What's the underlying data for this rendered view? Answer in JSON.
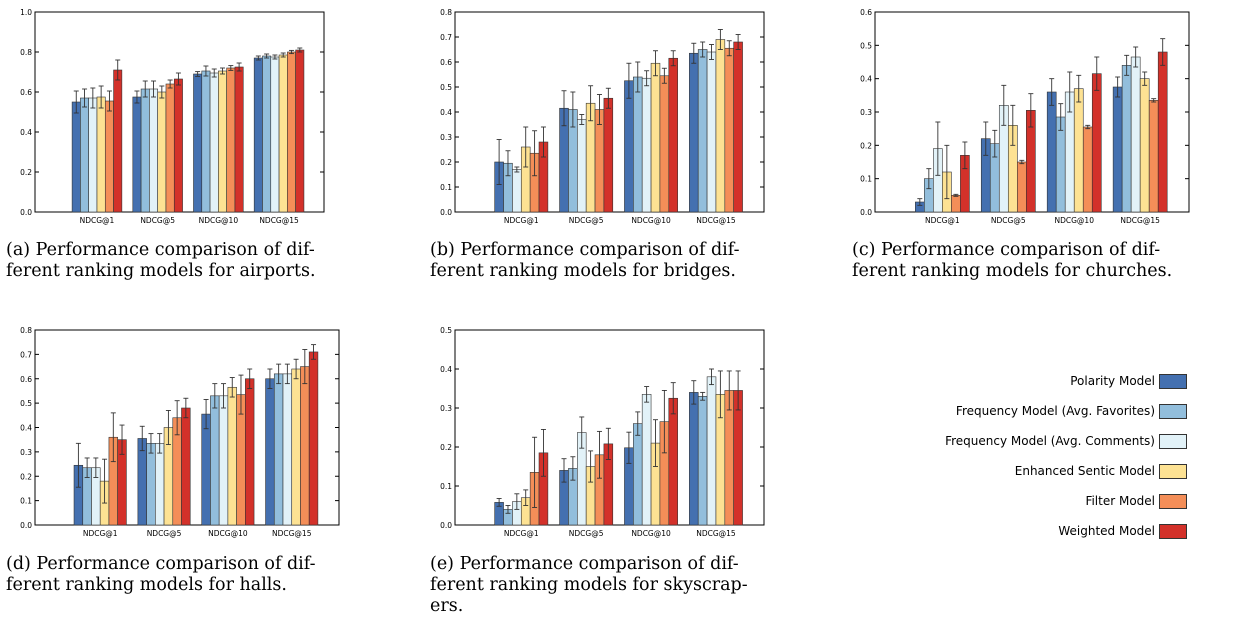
{
  "colors": [
    "#4470b0",
    "#92bedc",
    "#e2f2f8",
    "#fde293",
    "#f48e58",
    "#d3312a"
  ],
  "legend": [
    {
      "label": "Polarity Model",
      "color": "#4470b0"
    },
    {
      "label": "Frequency Model (Avg. Favorites)",
      "color": "#92bedc"
    },
    {
      "label": "Frequency Model (Avg. Comments)",
      "color": "#e2f2f8"
    },
    {
      "label": "Enhanced Sentic Model",
      "color": "#fde293"
    },
    {
      "label": "Filter Model",
      "color": "#f48e58"
    },
    {
      "label": "Weighted Model",
      "color": "#d3312a"
    }
  ],
  "chart_data": [
    {
      "type": "bar",
      "caption": "(a) Performance comparison of different ranking models for airports.",
      "caption_lines": [
        "(a) Performance comparison of dif-",
        "ferent ranking models for airports."
      ],
      "categories": [
        "NDCG@1",
        "NDCG@5",
        "NDCG@10",
        "NDCG@15"
      ],
      "ylim": [
        0,
        1.0
      ],
      "yticks": [
        "0.0",
        "0.2",
        "0.4",
        "0.6",
        "0.8",
        "1.0"
      ],
      "series": [
        {
          "name": "Polarity Model",
          "values": [
            0.55,
            0.575,
            0.69,
            0.77
          ],
          "errors": [
            0.055,
            0.03,
            0.012,
            0.01
          ]
        },
        {
          "name": "Frequency Model (Avg. Favorites)",
          "values": [
            0.57,
            0.615,
            0.705,
            0.78
          ],
          "errors": [
            0.045,
            0.04,
            0.025,
            0.01
          ]
        },
        {
          "name": "Frequency Model (Avg. Comments)",
          "values": [
            0.57,
            0.615,
            0.695,
            0.775
          ],
          "errors": [
            0.05,
            0.04,
            0.02,
            0.01
          ]
        },
        {
          "name": "Enhanced Sentic Model",
          "values": [
            0.575,
            0.6,
            0.705,
            0.785
          ],
          "errors": [
            0.055,
            0.03,
            0.015,
            0.01
          ]
        },
        {
          "name": "Filter Model",
          "values": [
            0.555,
            0.64,
            0.72,
            0.8
          ],
          "errors": [
            0.05,
            0.02,
            0.012,
            0.008
          ]
        },
        {
          "name": "Weighted Model",
          "values": [
            0.71,
            0.665,
            0.725,
            0.81
          ],
          "errors": [
            0.05,
            0.03,
            0.02,
            0.01
          ]
        }
      ]
    },
    {
      "type": "bar",
      "caption": "(b) Performance comparison of different ranking models for bridges.",
      "caption_lines": [
        "(b) Performance comparison of dif-",
        "ferent ranking models for bridges."
      ],
      "categories": [
        "NDCG@1",
        "NDCG@5",
        "NDCG@10",
        "NDCG@15"
      ],
      "ylim": [
        0,
        0.8
      ],
      "yticks": [
        "0.0",
        "0.1",
        "0.2",
        "0.3",
        "0.4",
        "0.5",
        "0.6",
        "0.7",
        "0.8"
      ],
      "series": [
        {
          "name": "Polarity Model",
          "values": [
            0.2,
            0.415,
            0.525,
            0.635
          ],
          "errors": [
            0.09,
            0.07,
            0.07,
            0.04
          ]
        },
        {
          "name": "Frequency Model (Avg. Favorites)",
          "values": [
            0.195,
            0.41,
            0.54,
            0.65
          ],
          "errors": [
            0.05,
            0.07,
            0.06,
            0.03
          ]
        },
        {
          "name": "Frequency Model (Avg. Comments)",
          "values": [
            0.17,
            0.37,
            0.535,
            0.64
          ],
          "errors": [
            0.01,
            0.02,
            0.03,
            0.03
          ]
        },
        {
          "name": "Enhanced Sentic Model",
          "values": [
            0.26,
            0.435,
            0.595,
            0.69
          ],
          "errors": [
            0.08,
            0.07,
            0.05,
            0.04
          ]
        },
        {
          "name": "Filter Model",
          "values": [
            0.235,
            0.41,
            0.545,
            0.655
          ],
          "errors": [
            0.09,
            0.06,
            0.03,
            0.03
          ]
        },
        {
          "name": "Weighted Model",
          "values": [
            0.28,
            0.455,
            0.615,
            0.68
          ],
          "errors": [
            0.06,
            0.04,
            0.03,
            0.03
          ]
        }
      ]
    },
    {
      "type": "bar",
      "caption": "(c) Performance comparison of different ranking models for churches.",
      "caption_lines": [
        "(c) Performance comparison of dif-",
        "ferent ranking models for churches."
      ],
      "categories": [
        "NDCG@1",
        "NDCG@5",
        "NDCG@10",
        "NDCG@15"
      ],
      "ylim": [
        0,
        0.6
      ],
      "yticks": [
        "0.0",
        "0.1",
        "0.2",
        "0.3",
        "0.4",
        "0.5",
        "0.6"
      ],
      "series": [
        {
          "name": "Polarity Model",
          "values": [
            0.03,
            0.22,
            0.36,
            0.375
          ],
          "errors": [
            0.01,
            0.05,
            0.04,
            0.03
          ]
        },
        {
          "name": "Frequency Model (Avg. Favorites)",
          "values": [
            0.1,
            0.205,
            0.285,
            0.44
          ],
          "errors": [
            0.03,
            0.04,
            0.04,
            0.03
          ]
        },
        {
          "name": "Frequency Model (Avg. Comments)",
          "values": [
            0.19,
            0.32,
            0.36,
            0.465
          ],
          "errors": [
            0.08,
            0.06,
            0.06,
            0.03
          ]
        },
        {
          "name": "Enhanced Sentic Model",
          "values": [
            0.12,
            0.26,
            0.37,
            0.4
          ],
          "errors": [
            0.08,
            0.06,
            0.04,
            0.02
          ]
        },
        {
          "name": "Filter Model",
          "values": [
            0.05,
            0.15,
            0.255,
            0.335
          ],
          "errors": [
            0.003,
            0.005,
            0.005,
            0.005
          ]
        },
        {
          "name": "Weighted Model",
          "values": [
            0.17,
            0.305,
            0.415,
            0.48
          ],
          "errors": [
            0.04,
            0.05,
            0.05,
            0.04
          ]
        }
      ]
    },
    {
      "type": "bar",
      "caption": "(d) Performance comparison of different ranking models for halls.",
      "caption_lines": [
        "(d) Performance comparison of dif-",
        "ferent ranking models for halls."
      ],
      "categories": [
        "NDCG@1",
        "NDCG@5",
        "NDCG@10",
        "NDCG@15"
      ],
      "ylim": [
        0,
        0.8
      ],
      "yticks": [
        "0.0",
        "0.1",
        "0.2",
        "0.3",
        "0.4",
        "0.5",
        "0.6",
        "0.7",
        "0.8"
      ],
      "series": [
        {
          "name": "Polarity Model",
          "values": [
            0.245,
            0.355,
            0.455,
            0.6
          ],
          "errors": [
            0.09,
            0.05,
            0.06,
            0.04
          ]
        },
        {
          "name": "Frequency Model (Avg. Favorites)",
          "values": [
            0.235,
            0.335,
            0.53,
            0.62
          ],
          "errors": [
            0.04,
            0.04,
            0.05,
            0.04
          ]
        },
        {
          "name": "Frequency Model (Avg. Comments)",
          "values": [
            0.235,
            0.335,
            0.53,
            0.62
          ],
          "errors": [
            0.04,
            0.04,
            0.05,
            0.04
          ]
        },
        {
          "name": "Enhanced Sentic Model",
          "values": [
            0.18,
            0.4,
            0.565,
            0.64
          ],
          "errors": [
            0.09,
            0.07,
            0.04,
            0.04
          ]
        },
        {
          "name": "Filter Model",
          "values": [
            0.36,
            0.44,
            0.535,
            0.65
          ],
          "errors": [
            0.1,
            0.07,
            0.08,
            0.07
          ]
        },
        {
          "name": "Weighted Model",
          "values": [
            0.35,
            0.48,
            0.6,
            0.71
          ],
          "errors": [
            0.06,
            0.04,
            0.04,
            0.03
          ]
        }
      ]
    },
    {
      "type": "bar",
      "caption": "(e) Performance comparison of different ranking models for skyscrapers.",
      "caption_lines": [
        "(e) Performance comparison of dif-",
        "ferent ranking models for skyscrap-",
        "ers."
      ],
      "categories": [
        "NDCG@1",
        "NDCG@5",
        "NDCG@10",
        "NDCG@15"
      ],
      "ylim": [
        0,
        0.5
      ],
      "yticks": [
        "0.0",
        "0.1",
        "0.2",
        "0.3",
        "0.4",
        "0.5"
      ],
      "series": [
        {
          "name": "Polarity Model",
          "values": [
            0.058,
            0.14,
            0.198,
            0.34
          ],
          "errors": [
            0.01,
            0.03,
            0.04,
            0.03
          ]
        },
        {
          "name": "Frequency Model (Avg. Favorites)",
          "values": [
            0.04,
            0.145,
            0.26,
            0.33
          ],
          "errors": [
            0.01,
            0.03,
            0.03,
            0.01
          ]
        },
        {
          "name": "Frequency Model (Avg. Comments)",
          "values": [
            0.06,
            0.237,
            0.335,
            0.38
          ],
          "errors": [
            0.02,
            0.04,
            0.02,
            0.02
          ]
        },
        {
          "name": "Enhanced Sentic Model",
          "values": [
            0.07,
            0.15,
            0.21,
            0.335
          ],
          "errors": [
            0.02,
            0.04,
            0.06,
            0.06
          ]
        },
        {
          "name": "Filter Model",
          "values": [
            0.135,
            0.18,
            0.265,
            0.345
          ],
          "errors": [
            0.09,
            0.06,
            0.08,
            0.05
          ]
        },
        {
          "name": "Weighted Model",
          "values": [
            0.185,
            0.208,
            0.325,
            0.345
          ],
          "errors": [
            0.06,
            0.04,
            0.04,
            0.05
          ]
        }
      ]
    }
  ]
}
